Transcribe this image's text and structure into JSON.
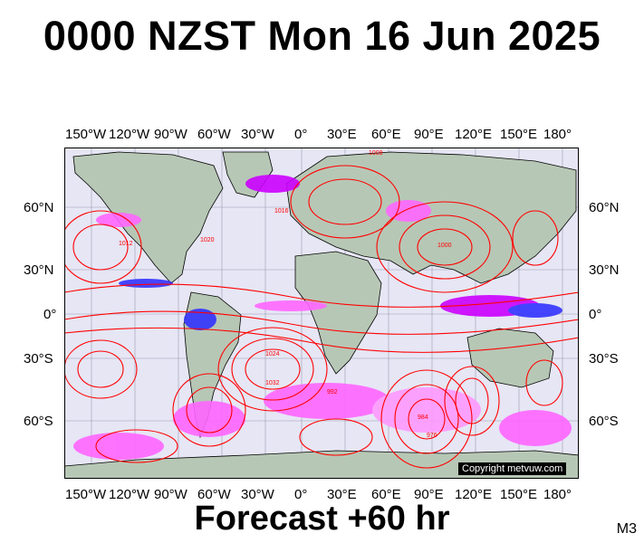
{
  "title": "0000 NZST Mon 16 Jun 2025",
  "subtitle": "Forecast +60 hr",
  "model_code": "M3",
  "copyright": "Copyright metvuw.com",
  "longitude_labels": [
    "150°W",
    "120°W",
    "90°W",
    "60°W",
    "30°W",
    "0°",
    "30°E",
    "60°E",
    "90°E",
    "120°E",
    "150°E",
    "180°"
  ],
  "latitude_labels": [
    "60°N",
    "30°N",
    "0°",
    "30°S",
    "60°S"
  ],
  "isobar_labels": [
    "1008",
    "1016",
    "1024",
    "1032",
    "1000",
    "992",
    "984",
    "976",
    "1012",
    "1020"
  ],
  "colors": {
    "ocean": "#e6e6f5",
    "land": "#b7c7b5",
    "isobar": "#ff0000",
    "rain_light": "#ff66ff",
    "rain_mid": "#cc00ff",
    "rain_heavy": "#3333ff"
  }
}
